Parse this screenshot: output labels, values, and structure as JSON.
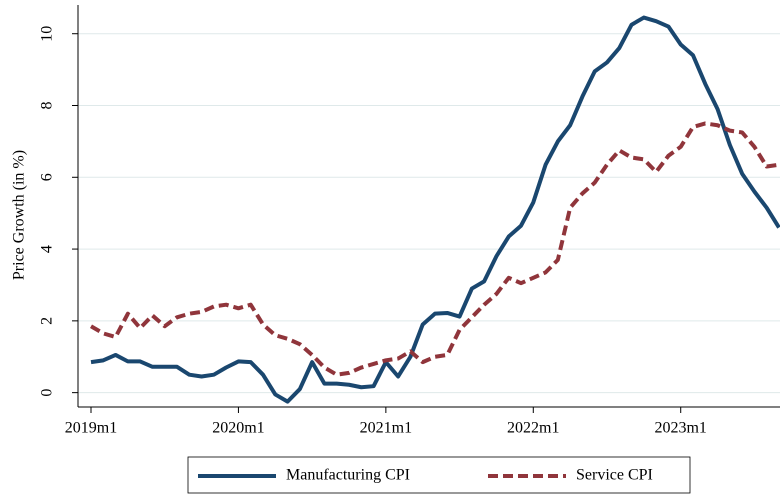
{
  "chart_data": {
    "type": "line",
    "y_label": "Price Growth (in %)",
    "x": [
      "2019m1",
      "2019m2",
      "2019m3",
      "2019m4",
      "2019m5",
      "2019m6",
      "2019m7",
      "2019m8",
      "2019m9",
      "2019m10",
      "2019m11",
      "2019m12",
      "2020m1",
      "2020m2",
      "2020m3",
      "2020m4",
      "2020m5",
      "2020m6",
      "2020m7",
      "2020m8",
      "2020m9",
      "2020m10",
      "2020m11",
      "2020m12",
      "2021m1",
      "2021m2",
      "2021m3",
      "2021m4",
      "2021m5",
      "2021m6",
      "2021m7",
      "2021m8",
      "2021m9",
      "2021m10",
      "2021m11",
      "2021m12",
      "2022m1",
      "2022m2",
      "2022m3",
      "2022m4",
      "2022m5",
      "2022m6",
      "2022m7",
      "2022m8",
      "2022m9",
      "2022m10",
      "2022m11",
      "2022m12",
      "2023m1",
      "2023m2",
      "2023m3",
      "2023m4",
      "2023m5",
      "2023m6",
      "2023m7",
      "2023m8",
      "2023m9"
    ],
    "xticks": [
      "2019m1",
      "2020m1",
      "2021m1",
      "2022m1",
      "2023m1"
    ],
    "series": [
      {
        "name": "Manufacturing CPI",
        "color": "#1a476f",
        "dash": "solid",
        "values": [
          0.85,
          0.9,
          1.05,
          0.87,
          0.87,
          0.72,
          0.72,
          0.72,
          0.5,
          0.45,
          0.5,
          0.7,
          0.87,
          0.85,
          0.5,
          -0.05,
          -0.25,
          0.1,
          0.85,
          0.25,
          0.25,
          0.22,
          0.15,
          0.18,
          0.85,
          0.45,
          1.0,
          1.9,
          2.2,
          2.22,
          2.12,
          2.9,
          3.1,
          3.8,
          4.35,
          4.65,
          5.3,
          6.35,
          7.0,
          7.45,
          8.25,
          8.95,
          9.2,
          9.6,
          10.25,
          10.45,
          10.35,
          10.2,
          9.7,
          9.4,
          8.6,
          7.9,
          6.9,
          6.1,
          5.6,
          5.15,
          4.6
        ]
      },
      {
        "name": "Service CPI",
        "color": "#90353b",
        "dash": "dashed",
        "values": [
          1.85,
          1.65,
          1.55,
          2.2,
          1.8,
          2.15,
          1.85,
          2.1,
          2.2,
          2.25,
          2.4,
          2.45,
          2.35,
          2.45,
          1.9,
          1.6,
          1.5,
          1.35,
          1.05,
          0.7,
          0.5,
          0.55,
          0.7,
          0.8,
          0.9,
          0.95,
          1.15,
          0.85,
          1.0,
          1.05,
          1.75,
          2.1,
          2.45,
          2.75,
          3.2,
          3.05,
          3.2,
          3.35,
          3.7,
          5.15,
          5.55,
          5.85,
          6.35,
          6.75,
          6.55,
          6.5,
          6.15,
          6.6,
          6.85,
          7.4,
          7.5,
          7.45,
          7.3,
          7.25,
          6.85,
          6.3,
          6.35
        ]
      }
    ],
    "ylim": [
      -0.4,
      10.8
    ],
    "yticks": [
      0,
      2,
      4,
      6,
      8,
      10
    ],
    "grid": true,
    "legend": "bottom"
  }
}
